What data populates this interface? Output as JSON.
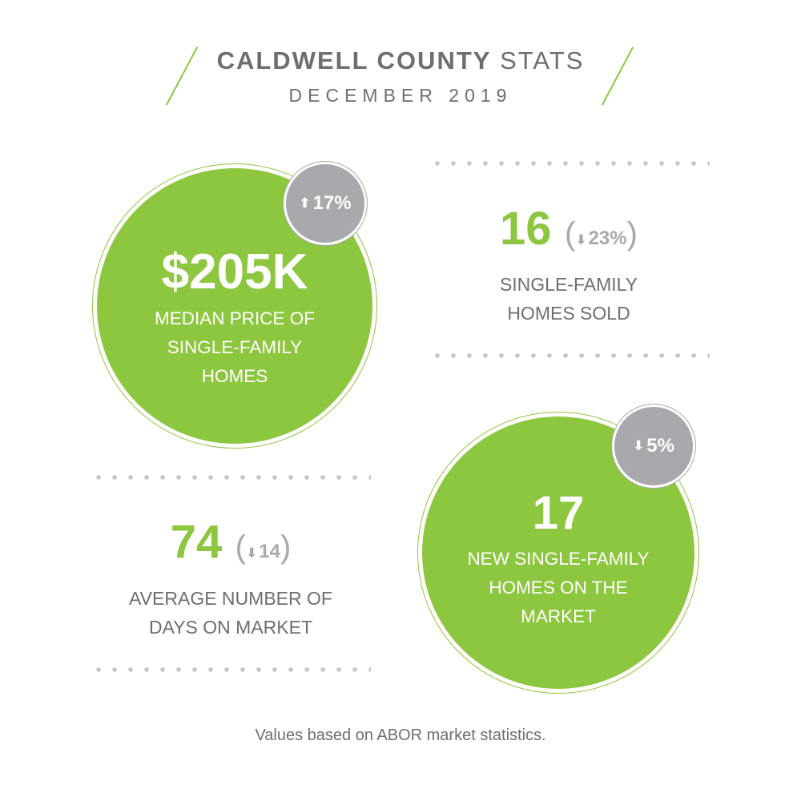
{
  "header": {
    "title_bold": "CALDWELL COUNTY",
    "title_light": "STATS",
    "subtitle": "DECEMBER 2019"
  },
  "stats": {
    "median_price": {
      "value": "$205K",
      "label_lines": [
        "MEDIAN PRICE OF",
        "SINGLE-FAMILY",
        "HOMES"
      ],
      "change": "17%",
      "direction": "up"
    },
    "homes_sold": {
      "value": "16",
      "label_lines": [
        "SINGLE-FAMILY",
        "HOMES SOLD"
      ],
      "change": "23%",
      "direction": "down"
    },
    "days_on_market": {
      "value": "74",
      "label_lines": [
        "AVERAGE NUMBER OF",
        "DAYS ON MARKET"
      ],
      "change": "14",
      "direction": "down"
    },
    "new_listings": {
      "value": "17",
      "label_lines": [
        "NEW SINGLE-FAMILY",
        "HOMES ON THE",
        "MARKET"
      ],
      "change": "5%",
      "direction": "down"
    }
  },
  "icons": {
    "up": "arrow-up-icon",
    "down": "arrow-down-icon"
  },
  "colors": {
    "green": "#8dc63f",
    "gray_badge": "#a7a9ac",
    "text": "#6d6e71"
  },
  "footer": "Values based on ABOR market statistics."
}
